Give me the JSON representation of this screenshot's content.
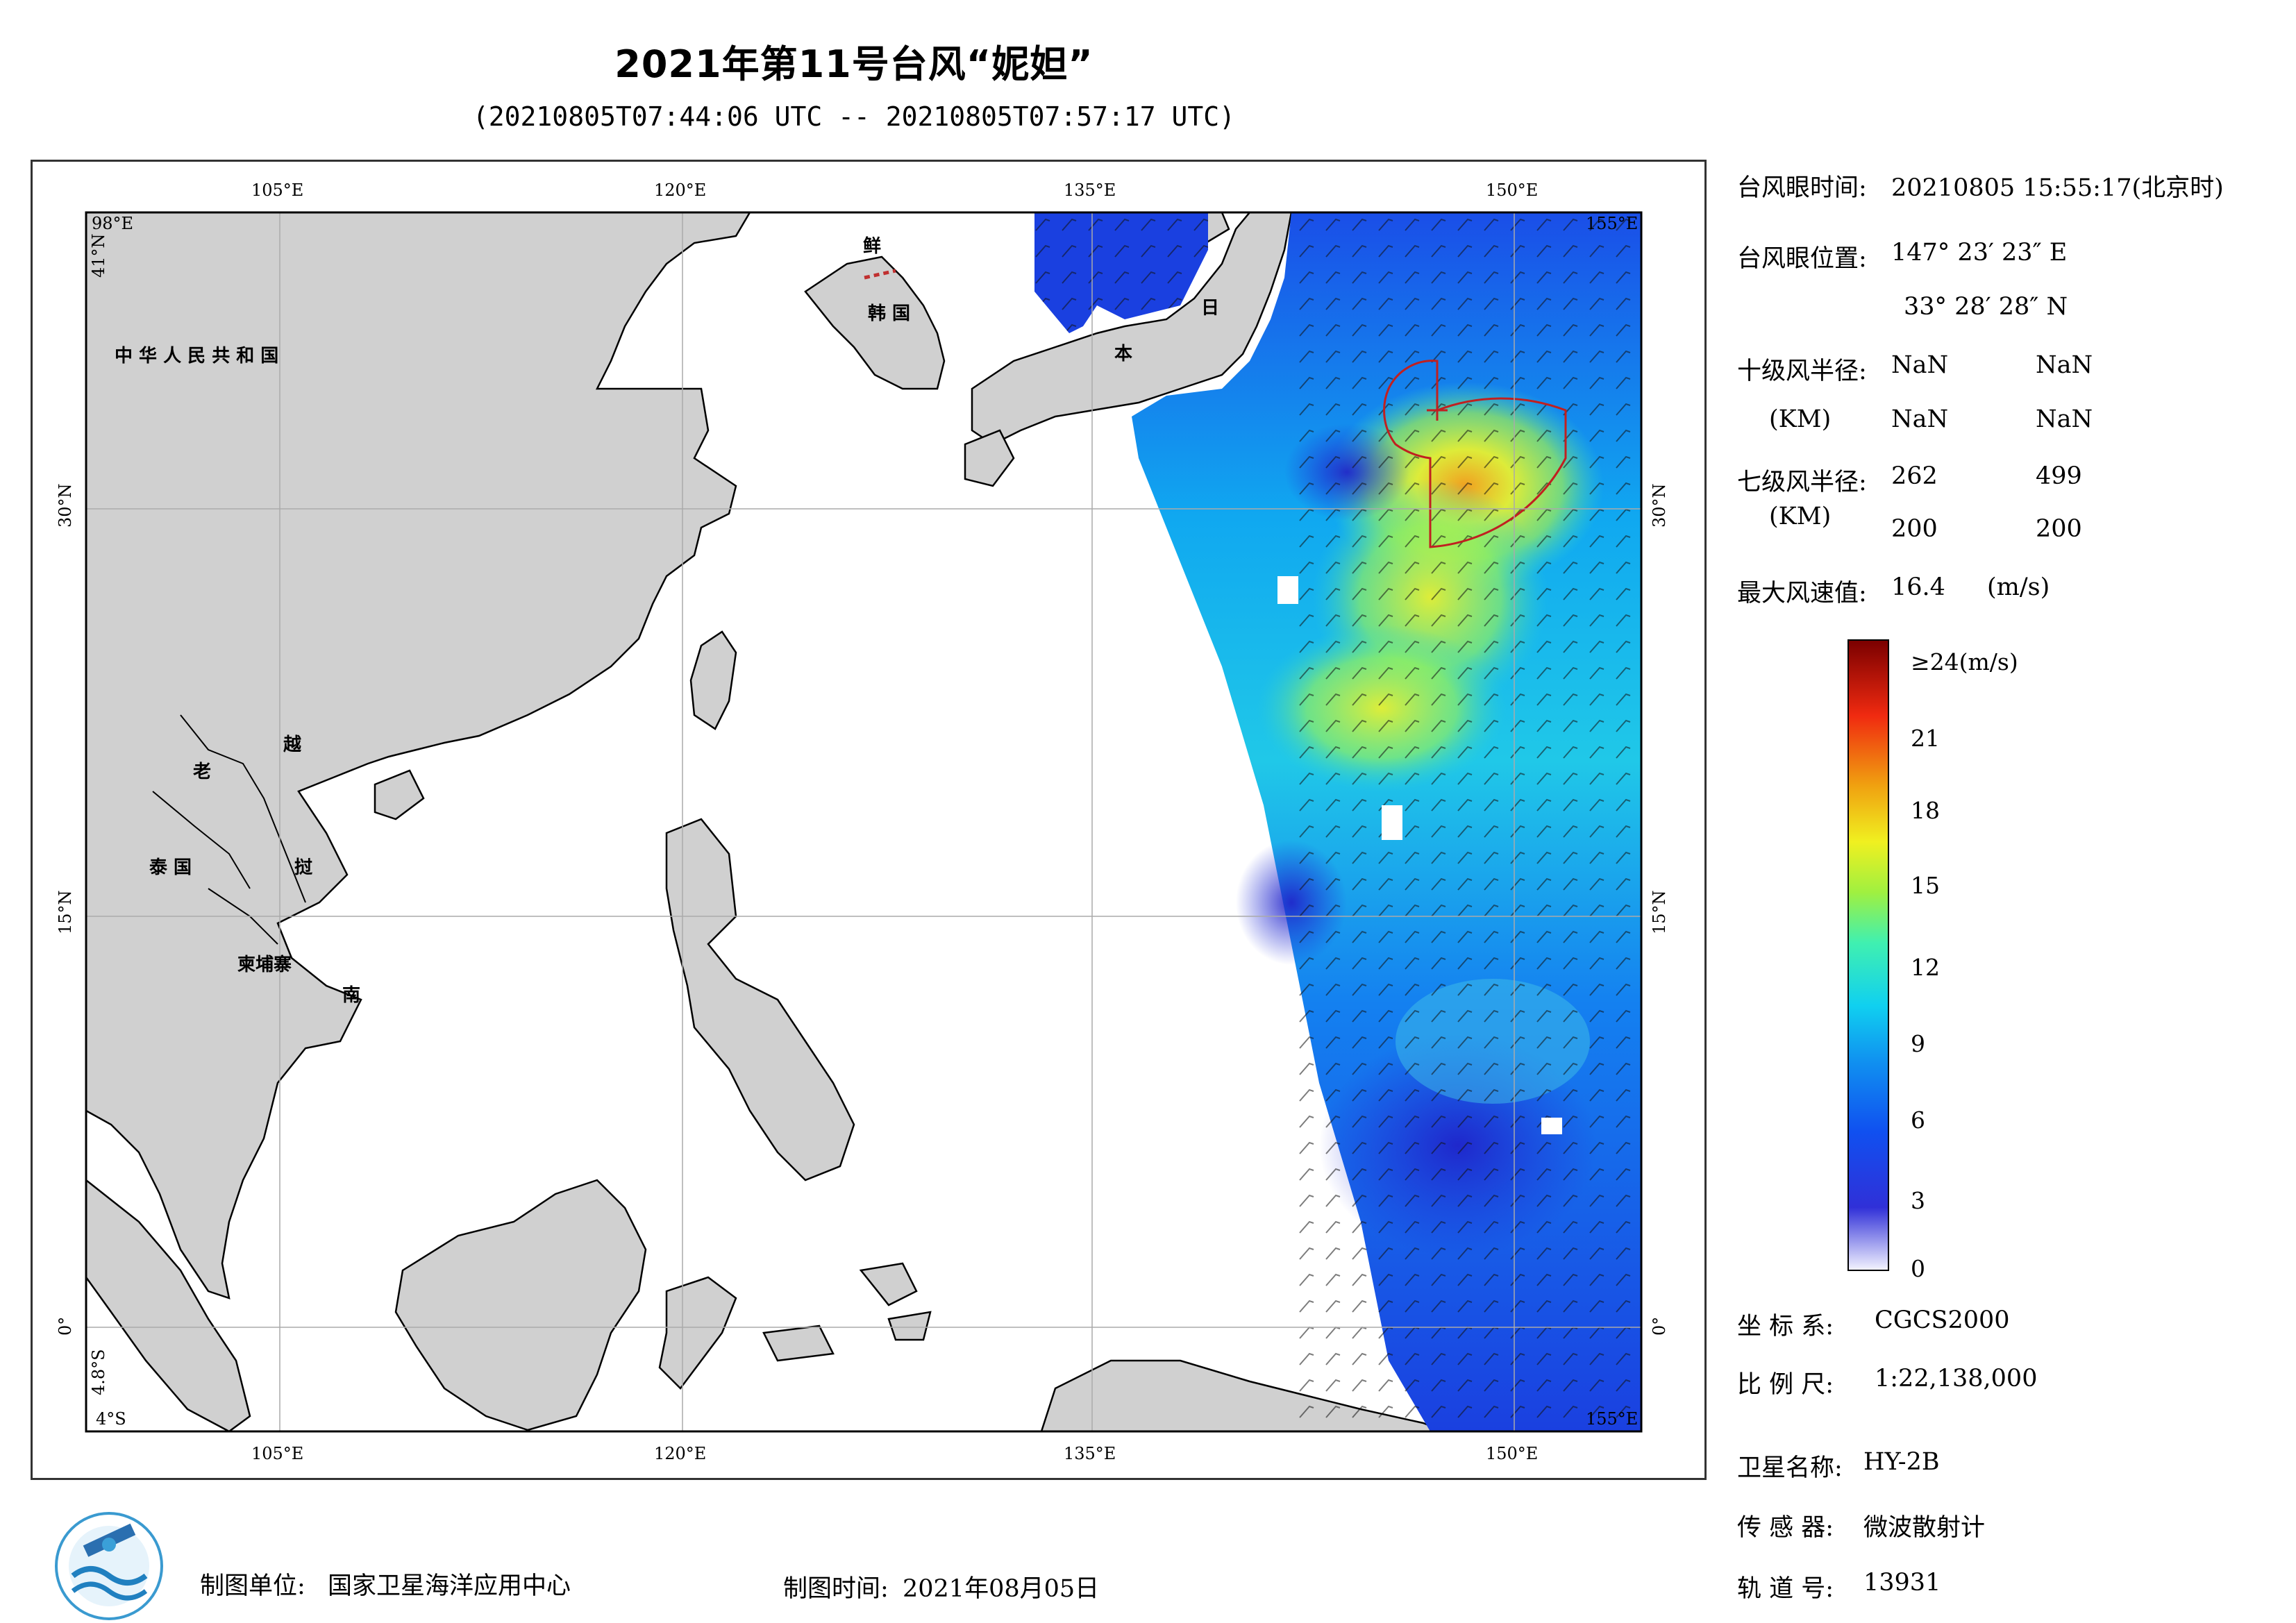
{
  "title": "2021年第11号台风“妮妲”",
  "subtitle": "(20210805T07:44:06 UTC -- 20210805T07:57:17 UTC)",
  "map": {
    "lon_ticks_top": [
      "105°E",
      "120°E",
      "135°E",
      "150°E"
    ],
    "lon_ticks_bottom": [
      "105°E",
      "120°E",
      "135°E",
      "150°E"
    ],
    "lat_ticks_left": [
      "30°N",
      "15°N",
      "0°"
    ],
    "lat_ticks_right": [
      "30°N",
      "15°N",
      "0°"
    ],
    "corner_labels": {
      "top_left_lon": "98°E",
      "top_left_lat": "41°N",
      "top_right": "155°E",
      "bottom_left_lat": "4°S",
      "bottom_left_lat2": "4.8°S",
      "bottom_right": "155°E"
    },
    "country_labels": [
      "中 华 人 民 共 和 国",
      "鲜",
      "韩 国",
      "日",
      "本",
      "老",
      "越",
      "泰 国",
      "挝",
      "柬埔寨",
      "南"
    ],
    "typhoon_eye": {
      "lon": 147.39,
      "lat": 33.47
    },
    "lon_range": [
      98,
      155
    ],
    "lat_range": [
      -4,
      41
    ],
    "gale_radius_km": {
      "ne": 262,
      "se": 499,
      "sw": 200,
      "nw": 200
    }
  },
  "info": {
    "eye_time_label": "台风眼时间:",
    "eye_time_value": "20210805 15:55:17(北京时)",
    "eye_pos_label": "台风眼位置:",
    "eye_pos_lon": "147° 23′ 23″ E",
    "eye_pos_lat": "33° 28′ 28″ N",
    "r10_label": "十级风半径:",
    "r10_unit": "(KM)",
    "r10_values": [
      "NaN",
      "NaN",
      "NaN",
      "NaN"
    ],
    "r7_label": "七级风半径:",
    "r7_unit": "(KM)",
    "r7_values": [
      "262",
      "499",
      "200",
      "200"
    ],
    "max_wind_label": "最大风速值:",
    "max_wind_value": "16.4",
    "max_wind_unit": "(m/s)"
  },
  "colorbar": {
    "top_label": "≥24(m/s)",
    "ticks": [
      "21",
      "18",
      "15",
      "12",
      "9",
      "6",
      "3",
      "0"
    ],
    "colors": [
      "#f0f0ff",
      "#2020d0",
      "#1060f0",
      "#10b0f0",
      "#30e0c0",
      "#a0f040",
      "#f0f020",
      "#f0a010",
      "#f03010",
      "#800000"
    ]
  },
  "meta": {
    "coord_label": "坐 标 系:",
    "coord_value": "CGCS2000",
    "scale_label": "比 例 尺:",
    "scale_value": "1:22,138,000",
    "sat_label": "卫星名称:",
    "sat_value": "HY-2B",
    "sensor_label": "传 感 器:",
    "sensor_value": "微波散射计",
    "orbit_label": "轨 道 号:",
    "orbit_value": "13931"
  },
  "footer": {
    "org_label": "制图单位:",
    "org_value": "国家卫星海洋应用中心",
    "date_label": "制图时间:",
    "date_value": "2021年08月05日"
  }
}
